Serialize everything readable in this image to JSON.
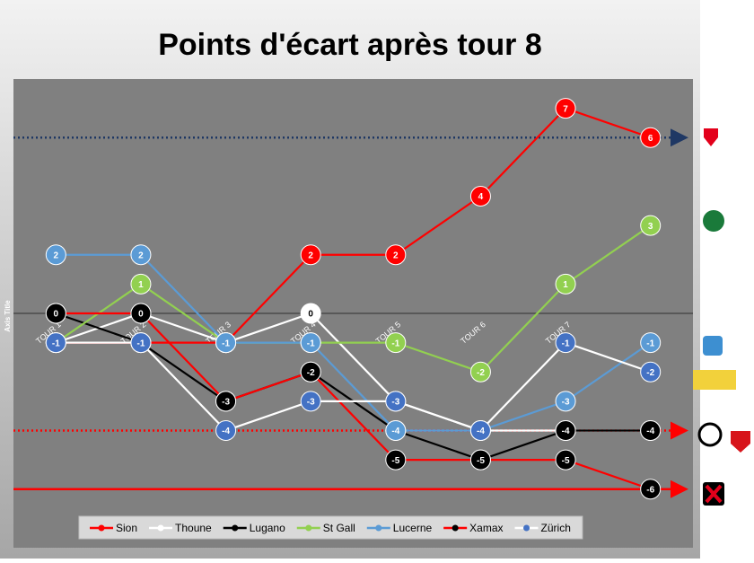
{
  "chart_data": {
    "type": "line",
    "title": "Points d'écart après tour 8",
    "y_axis_label": "Axis Title",
    "categories": [
      "TOUR 1",
      "TOUR 2",
      "TOUR 3",
      "TOUR 4",
      "TOUR 5",
      "TOUR 6",
      "TOUR 7",
      null
    ],
    "ylim": [
      -8,
      8
    ],
    "series": [
      {
        "name": "Sion",
        "color": "#ff0000",
        "marker_color": "#ff0000",
        "values": [
          -1,
          -1,
          -1,
          2,
          2,
          4,
          7,
          6
        ]
      },
      {
        "name": "Thoune",
        "color": "#ffffff",
        "marker_color": "#ffffff",
        "values": [
          -1,
          0,
          -1,
          0,
          -3,
          -4,
          -4,
          -4
        ]
      },
      {
        "name": "Lugano",
        "color": "#000000",
        "marker_color": "#000000",
        "values": [
          0,
          -1,
          -3,
          -2,
          -4,
          -5,
          -4,
          -4
        ]
      },
      {
        "name": "St Gall",
        "color": "#92d050",
        "marker_color": "#92d050",
        "values": [
          -1,
          1,
          -1,
          -1,
          -1,
          -2,
          1,
          3
        ]
      },
      {
        "name": "Lucerne",
        "color": "#5b9bd5",
        "marker_color": "#5b9bd5",
        "values": [
          2,
          2,
          -1,
          -1,
          -4,
          -4,
          -3,
          -1
        ]
      },
      {
        "name": "Xamax",
        "color": "#ff0000",
        "marker_color": "#000000",
        "values": [
          0,
          0,
          -3,
          -2,
          -5,
          -5,
          -5,
          -6
        ]
      },
      {
        "name": "Zürich",
        "color": "#ffffff",
        "marker_color": "#4472c4",
        "values": [
          -1,
          -1,
          -4,
          -3,
          -3,
          -4,
          -1,
          -2
        ]
      }
    ],
    "reference_lines": [
      {
        "value": 6,
        "color": "#1f3864",
        "style": "dotted"
      },
      {
        "value": -4,
        "color": "#ff0000",
        "style": "dotted"
      },
      {
        "value": -6,
        "color": "#ff0000",
        "style": "solid"
      }
    ],
    "legend": "bottom"
  }
}
